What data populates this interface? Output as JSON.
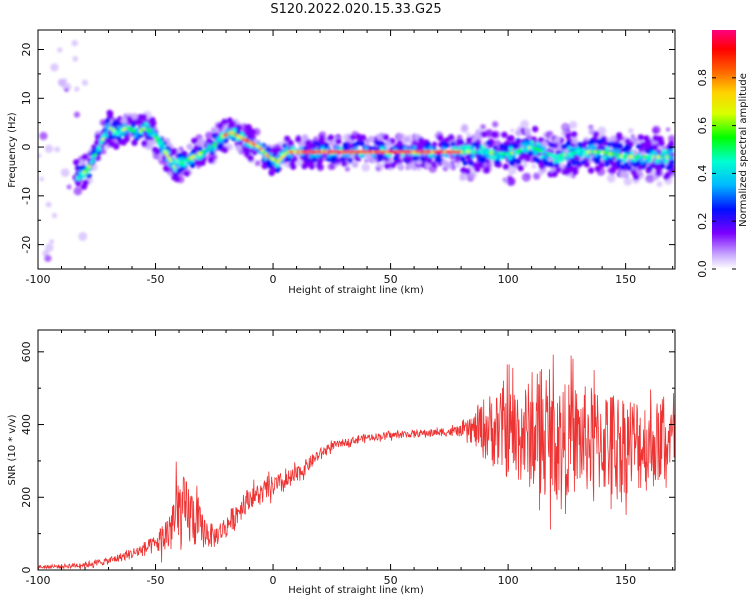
{
  "title": "S120.2022.020.15.33.G25",
  "chart_data": [
    {
      "type": "heatmap",
      "xlabel": "Height of straight line (km)",
      "ylabel": "Frequency (Hz)",
      "xlim": [
        -100,
        171
      ],
      "ylim": [
        -25,
        24
      ],
      "xticks": [
        -100,
        -50,
        0,
        50,
        100,
        150
      ],
      "yticks": [
        -20,
        -10,
        0,
        10,
        20
      ],
      "ridge": {
        "x": [
          -82,
          -78,
          -74,
          -70,
          -66,
          -62,
          -58,
          -54,
          -50,
          -46,
          -42,
          -38,
          -34,
          -30,
          -26,
          -22,
          -18,
          -14,
          -10,
          -6,
          -2,
          2,
          6,
          10,
          20,
          40,
          60,
          80,
          90,
          100,
          110,
          120,
          130,
          140,
          150,
          160,
          170
        ],
        "y": [
          -6,
          -4,
          0,
          4,
          3,
          4,
          3,
          4,
          2,
          -1,
          -4,
          -3,
          -2,
          -1,
          0,
          2,
          3,
          2,
          1,
          0,
          -2,
          -3,
          -1,
          -1,
          -1,
          -1,
          -1,
          -1,
          -1,
          -1.5,
          0,
          -2,
          -1,
          -1,
          -2,
          -2,
          -2
        ]
      },
      "colorbar": {
        "label": "Normalized spectral amplitude",
        "ticks": [
          0.0,
          0.2,
          0.4,
          0.6,
          0.8
        ],
        "range": [
          0,
          1
        ],
        "colors": [
          "#ffffff",
          "#c8a8ff",
          "#7a00ff",
          "#0010ff",
          "#00b8ff",
          "#00ffd0",
          "#00ff00",
          "#d8ff00",
          "#ffd000",
          "#ff6000",
          "#ff0000",
          "#ff0080"
        ]
      }
    },
    {
      "type": "line",
      "xlabel": "Height of straight line (km)",
      "ylabel": "SNR (10 * v/v)",
      "xlim": [
        -100,
        171
      ],
      "ylim": [
        0,
        660
      ],
      "xticks": [
        -100,
        -50,
        0,
        50,
        100,
        150
      ],
      "yticks": [
        0,
        200,
        400,
        600
      ],
      "color": "#ee3333",
      "envelope": {
        "x": [
          -100,
          -90,
          -80,
          -70,
          -60,
          -50,
          -45,
          -40,
          -35,
          -30,
          -25,
          -20,
          -15,
          -10,
          -5,
          0,
          5,
          10,
          15,
          20,
          25,
          30,
          40,
          50,
          60,
          70,
          80,
          85,
          90,
          100,
          110,
          120,
          130,
          140,
          150,
          160,
          171
        ],
        "mean": [
          8,
          10,
          15,
          25,
          45,
          70,
          100,
          160,
          150,
          110,
          90,
          120,
          160,
          200,
          210,
          230,
          240,
          260,
          290,
          320,
          340,
          350,
          365,
          370,
          375,
          378,
          382,
          385,
          390,
          380,
          370,
          360,
          360,
          355,
          350,
          345,
          360
        ],
        "spread": [
          5,
          6,
          8,
          10,
          15,
          25,
          60,
          110,
          90,
          50,
          30,
          30,
          35,
          30,
          30,
          30,
          30,
          25,
          20,
          15,
          12,
          10,
          10,
          10,
          10,
          10,
          15,
          40,
          90,
          130,
          150,
          160,
          150,
          150,
          140,
          130,
          90
        ]
      }
    }
  ]
}
